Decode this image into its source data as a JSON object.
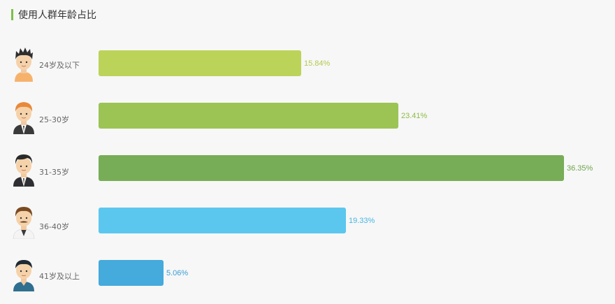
{
  "title": "使用人群年龄占比",
  "chart_data": {
    "type": "bar",
    "orientation": "horizontal",
    "title": "使用人群年龄占比",
    "categories": [
      "24岁及以下",
      "25-30岁",
      "31-35岁",
      "36-40岁",
      "41岁及以上"
    ],
    "values": [
      15.84,
      23.41,
      36.35,
      19.33,
      5.06
    ],
    "value_labels": [
      "15.84%",
      "23.41%",
      "36.35%",
      "19.33%",
      "5.06%"
    ],
    "unit": "%",
    "colors": [
      "#bcd35a",
      "#9bc455",
      "#77ad57",
      "#5bc7ee",
      "#45aadc"
    ],
    "label_colors": [
      "#b4c94d",
      "#8dbb45",
      "#6fa54c",
      "#46b5e3",
      "#3a9fd3"
    ],
    "icons": [
      "young-boy-avatar-icon",
      "ginger-man-avatar-icon",
      "suit-man-avatar-icon",
      "mustache-man-avatar-icon",
      "older-man-avatar-icon"
    ]
  }
}
